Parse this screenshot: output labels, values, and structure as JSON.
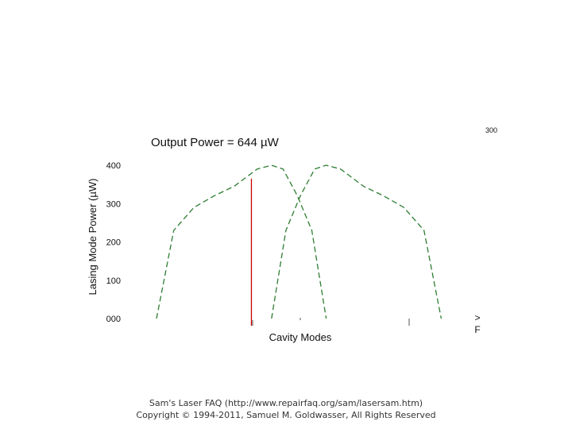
{
  "chart_data": {
    "type": "line",
    "title": "Output Power = 644 µW",
    "ylabel": "Lasing Mode Power (µW)",
    "xlabel": "Cavity Modes",
    "corner_label": "300",
    "right_marker_top": ">",
    "right_marker_bottom": "F",
    "yticks": [
      {
        "value": 0,
        "label": "000"
      },
      {
        "value": 100,
        "label": "100"
      },
      {
        "value": 200,
        "label": "200"
      },
      {
        "value": 300,
        "label": "300"
      },
      {
        "value": 400,
        "label": "400"
      }
    ],
    "ylim": [
      0,
      400
    ],
    "xlim": [
      0,
      100
    ],
    "grid": false,
    "series": [
      {
        "color": "#2e7d32",
        "style": "dashed",
        "points": [
          [
            0,
            0
          ],
          [
            6,
            230
          ],
          [
            13,
            290
          ],
          [
            20,
            320
          ],
          [
            27,
            345
          ],
          [
            35,
            390
          ],
          [
            40,
            400
          ],
          [
            44,
            390
          ],
          [
            49,
            320
          ],
          [
            54,
            230
          ],
          [
            59,
            0
          ]
        ]
      },
      {
        "color": "#2e7d32",
        "style": "dashed",
        "points": [
          [
            40,
            0
          ],
          [
            45,
            230
          ],
          [
            50,
            320
          ],
          [
            55,
            390
          ],
          [
            59,
            400
          ],
          [
            64,
            390
          ],
          [
            72,
            345
          ],
          [
            79,
            320
          ],
          [
            86,
            290
          ],
          [
            93,
            230
          ],
          [
            99,
            0
          ]
        ]
      }
    ],
    "markers": [
      {
        "x": 33,
        "y": 365,
        "color": "#cc0000"
      }
    ]
  },
  "footer": {
    "line1": "Sam's Laser FAQ (http://www.repairfaq.org/sam/lasersam.htm)",
    "line2": "Copyright © 1994-2011, Samuel M. Goldwasser, All Rights Reserved"
  }
}
